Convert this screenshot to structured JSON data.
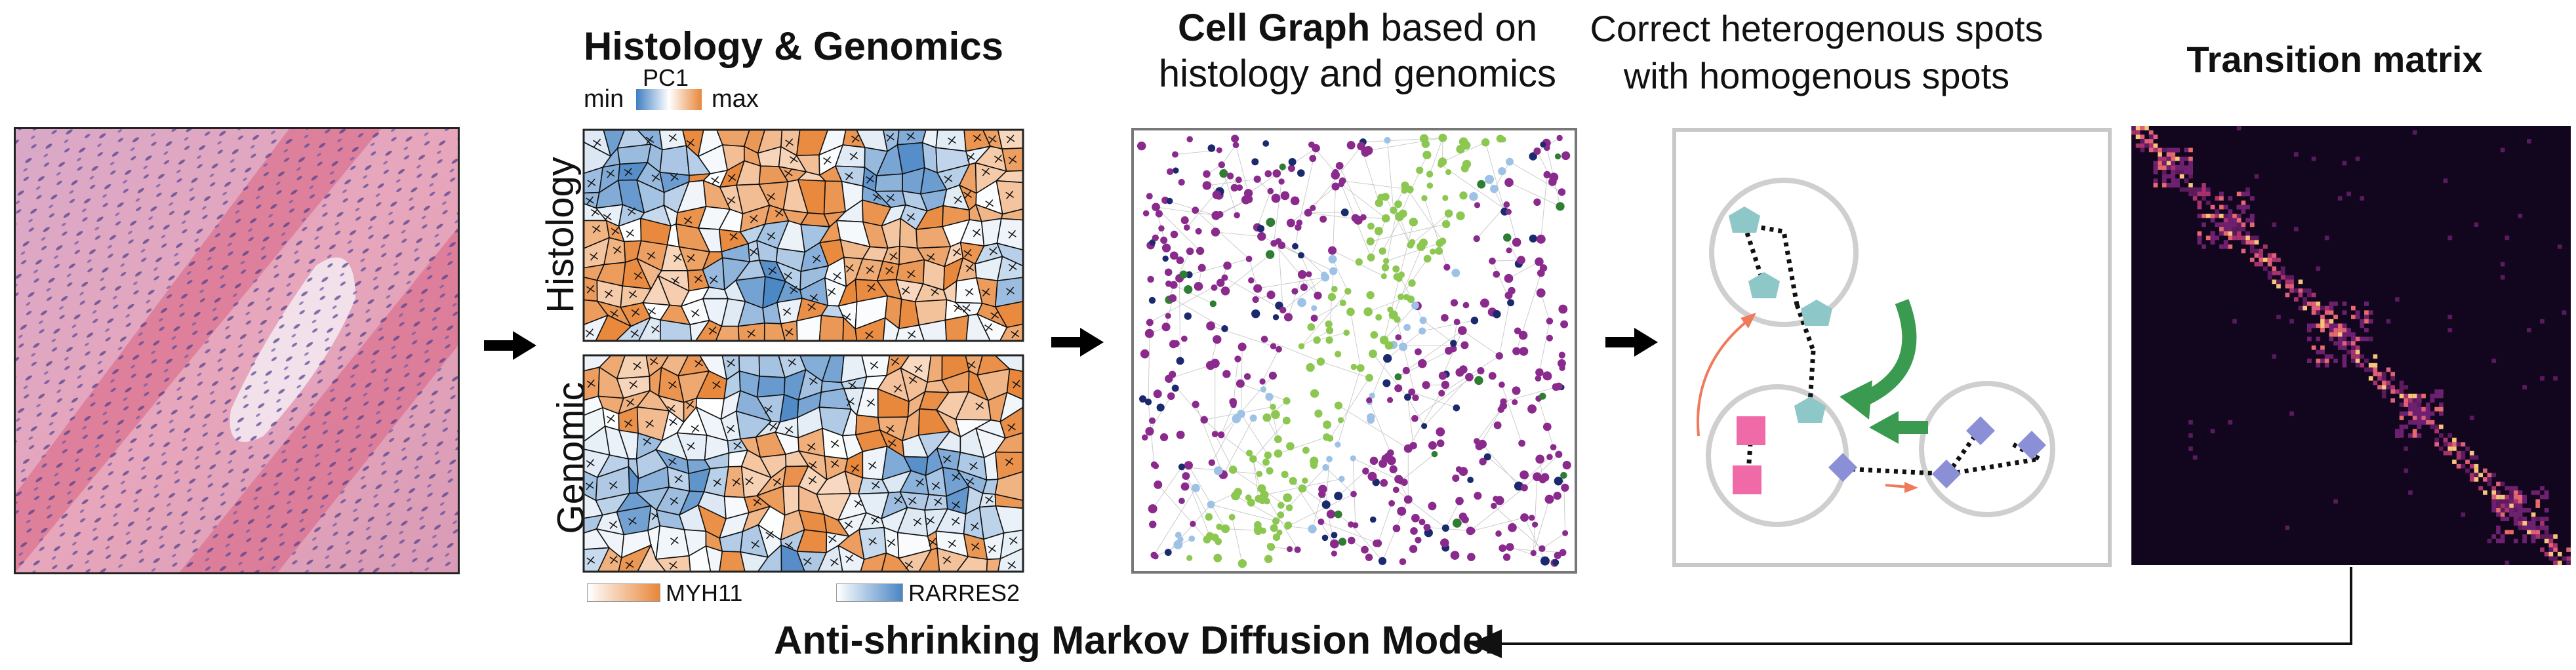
{
  "panels": {
    "histology_genomics": {
      "title": "Histology & Genomics",
      "colorbar_label": "PC1",
      "colorbar_min": "min",
      "colorbar_max": "max",
      "row_top_label": "Histology",
      "row_bottom_label": "Genomic",
      "legend_left": "MYH11",
      "legend_right": "RARRES2"
    },
    "cell_graph": {
      "title_bold": "Cell Graph",
      "title_rest_line1": " based on",
      "title_line2": "histology and genomics"
    },
    "correction": {
      "title_line1": "Correct heterogenous spots",
      "title_line2": "with homogenous spots"
    },
    "transition": {
      "title": "Transition matrix"
    }
  },
  "bottom_label": "Anti-shrinking Markov Diffusion Model",
  "colors": {
    "orange": "#e8873a",
    "blue": "#4a86c5",
    "purple": "#8a2a8c",
    "green_light": "#8cc752",
    "green_dark": "#2e7d32",
    "navy": "#1a2a6c",
    "light_blue": "#9ec2e6",
    "teal": "#8ec7c7",
    "pink": "#f06aa8",
    "periwinkle": "#8a8fd6",
    "heatmap_bg": "#12061f",
    "correction_arrow": "#3a9a4f",
    "tissue_pink": "#e8a7bf"
  },
  "icons": [
    "arrow-right-icon",
    "arrow-left-icon"
  ]
}
